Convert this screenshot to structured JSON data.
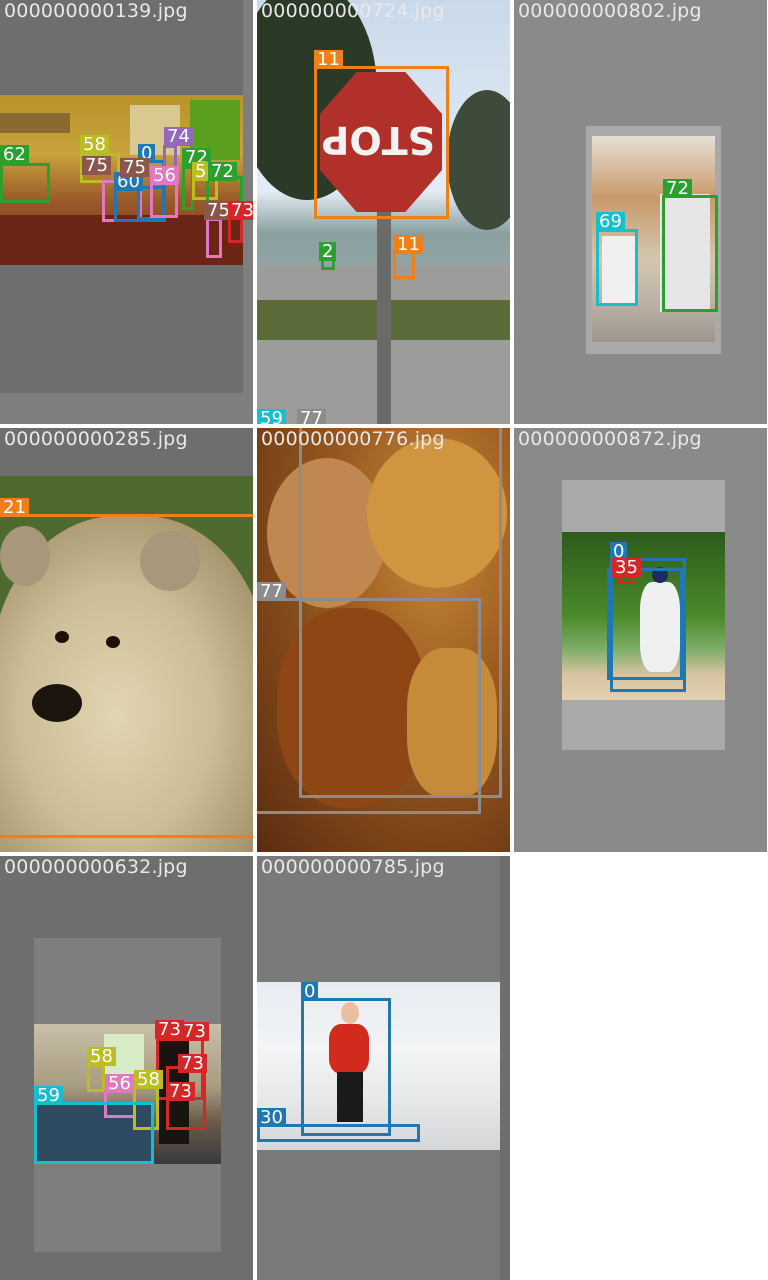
{
  "tiles": [
    {
      "filename": "000000000139.jpg",
      "labels": [
        "62",
        "58",
        "75",
        "0",
        "74",
        "72",
        "60",
        "75",
        "56",
        "58",
        "72",
        "75",
        "73"
      ]
    },
    {
      "filename": "000000000724.jpg",
      "labels": [
        "11",
        "2",
        "11",
        "59",
        "77"
      ]
    },
    {
      "filename": "000000000802.jpg",
      "labels": [
        "72",
        "69"
      ]
    },
    {
      "filename": "000000000285.jpg",
      "labels": [
        "21"
      ]
    },
    {
      "filename": "000000000776.jpg",
      "labels": [
        "77"
      ]
    },
    {
      "filename": "000000000872.jpg",
      "labels": [
        "0",
        "35"
      ]
    },
    {
      "filename": "000000000632.jpg",
      "labels": [
        "73",
        "73",
        "58",
        "56",
        "58",
        "73",
        "73",
        "59"
      ]
    },
    {
      "filename": "000000000785.jpg",
      "labels": [
        "0",
        "30"
      ]
    }
  ],
  "stop_sign_text": "STOP",
  "colors": {
    "orange": "#f07f15",
    "green": "#2ca02c",
    "cyan": "#17becf",
    "blue": "#1f77b4",
    "olive": "#bcbd22",
    "pink": "#e377c2",
    "purple": "#9467bd",
    "gray": "#8c8c8c",
    "red": "#d62728",
    "brown": "#8c564b"
  }
}
